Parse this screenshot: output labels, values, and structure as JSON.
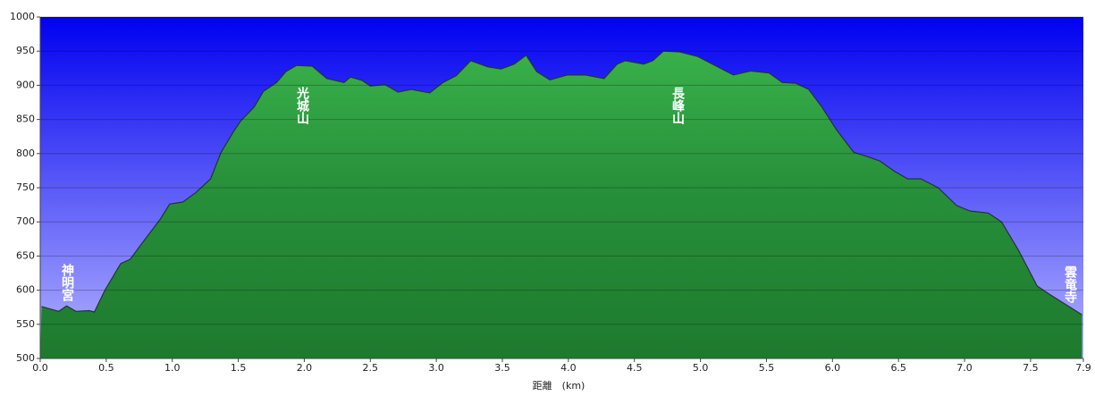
{
  "chart_data": {
    "type": "area",
    "x_label": "距離　(km)",
    "x": [
      0.01,
      0.14,
      0.2,
      0.27,
      0.37,
      0.41,
      0.49,
      0.61,
      0.68,
      0.78,
      0.91,
      0.98,
      1.08,
      1.18,
      1.29,
      1.37,
      1.46,
      1.52,
      1.62,
      1.69,
      1.79,
      1.86,
      1.94,
      2.06,
      2.17,
      2.3,
      2.35,
      2.44,
      2.5,
      2.61,
      2.71,
      2.81,
      2.95,
      3.05,
      3.15,
      3.26,
      3.39,
      3.49,
      3.59,
      3.68,
      3.76,
      3.86,
      3.99,
      4.13,
      4.27,
      4.37,
      4.43,
      4.57,
      4.64,
      4.72,
      4.84,
      4.98,
      5.11,
      5.25,
      5.38,
      5.52,
      5.62,
      5.72,
      5.82,
      5.92,
      6.03,
      6.16,
      6.26,
      6.36,
      6.47,
      6.57,
      6.67,
      6.8,
      6.94,
      7.04,
      7.18,
      7.28,
      7.41,
      7.55,
      7.65,
      7.79,
      7.89
    ],
    "values": [
      576,
      569,
      577,
      569,
      570,
      568,
      600,
      639,
      645,
      671,
      704,
      726,
      729,
      743,
      763,
      802,
      831,
      848,
      868,
      891,
      904,
      920,
      929,
      928,
      910,
      904,
      912,
      907,
      899,
      901,
      890,
      894,
      889,
      904,
      914,
      936,
      927,
      924,
      931,
      944,
      920,
      908,
      915,
      915,
      910,
      931,
      936,
      931,
      936,
      950,
      949,
      942,
      929,
      915,
      921,
      918,
      904,
      903,
      894,
      868,
      835,
      802,
      796,
      789,
      774,
      763,
      763,
      750,
      724,
      716,
      713,
      700,
      658,
      606,
      593,
      576,
      564
    ],
    "color": "#2e9e3e",
    "xlim": [
      0,
      7.9
    ],
    "ylim": [
      500,
      1000
    ],
    "xticks": [
      {
        "value": 0,
        "label": "0.0"
      },
      0.5,
      {
        "value": 1,
        "label": "1.0"
      },
      1.5,
      {
        "value": 2,
        "label": "2.0"
      },
      2.5,
      {
        "value": 3,
        "label": "3.0"
      },
      3.5,
      {
        "value": 4,
        "label": "4.0"
      },
      4.5,
      {
        "value": 5,
        "label": "5.0"
      },
      5.5,
      {
        "value": 6,
        "label": "6.0"
      },
      6.5,
      {
        "value": 7,
        "label": "7.0"
      },
      7.5,
      7.9
    ],
    "yticks": [
      500,
      550,
      600,
      650,
      700,
      750,
      800,
      850,
      900,
      950,
      1000
    ],
    "grid": true,
    "annotations": [
      "神明宮",
      "光城山",
      "長峰山",
      "雲竜寺"
    ]
  }
}
